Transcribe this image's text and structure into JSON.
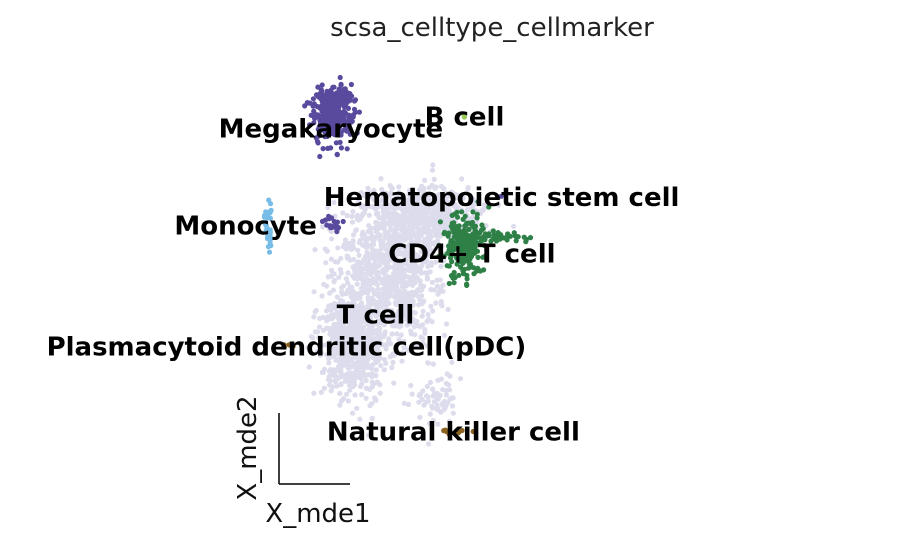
{
  "chart_data": {
    "type": "scatter",
    "title": "scsa_celltype_cellmarker",
    "xlabel": "X_mde1",
    "ylabel": "X_mde2",
    "grid": false,
    "legend": "on data",
    "xlim": [
      0,
      100
    ],
    "ylim": [
      0,
      100
    ],
    "series": [
      {
        "name": "T cell",
        "color": "#dcdcec",
        "label_pos": [
          26,
          42
        ],
        "clusters": [
          {
            "cx": 20,
            "cy": 35,
            "sx": 4.5,
            "sy": 7,
            "n": 700
          },
          {
            "cx": 28,
            "cy": 55,
            "sx": 7,
            "sy": 6,
            "n": 450
          },
          {
            "cx": 38,
            "cy": 66,
            "sx": 8,
            "sy": 4,
            "n": 600
          },
          {
            "cx": 33,
            "cy": 45,
            "sx": 5,
            "sy": 6,
            "n": 250
          },
          {
            "cx": 42,
            "cy": 22,
            "sx": 3.5,
            "sy": 4,
            "n": 70
          }
        ]
      },
      {
        "name": "Megakaryocyte",
        "color": "#5a4a9e",
        "label_pos": [
          14,
          88
        ],
        "clusters": [
          {
            "cx": 14,
            "cy": 91,
            "sx": 2.5,
            "sy": 3.2,
            "n": 320
          },
          {
            "cx": 16,
            "cy": 96,
            "sx": 2.5,
            "sy": 1.2,
            "n": 80
          },
          {
            "cx": 14,
            "cy": 64,
            "sx": 1.5,
            "sy": 1,
            "n": 20
          }
        ]
      },
      {
        "name": "CD4+ T cell",
        "color": "#2e8046",
        "label_pos": [
          52,
          57
        ],
        "clusters": [
          {
            "cx": 50,
            "cy": 59,
            "sx": 2.5,
            "sy": 4,
            "n": 230
          },
          {
            "cx": 59,
            "cy": 61,
            "sx": 4,
            "sy": 0.8,
            "n": 40
          }
        ]
      },
      {
        "name": "Monocyte",
        "color": "#78bde8",
        "label_pos": [
          -9,
          64
        ],
        "clusters": [
          {
            "cx": -3,
            "cy": 63,
            "sx": 0.4,
            "sy": 3.5,
            "n": 32
          }
        ]
      },
      {
        "name": "Natural killer cell",
        "color": "#8c6420",
        "label_pos": [
          47,
          13
        ],
        "clusters": [
          {
            "cx": 47,
            "cy": 13,
            "sx": 1.8,
            "sy": 0.3,
            "n": 12
          }
        ]
      },
      {
        "name": "Plasmacytoid dendritic cell(pDC)",
        "color": "#8c6420",
        "label_pos": [
          2,
          34
        ],
        "clusters": [
          {
            "cx": 2,
            "cy": 34,
            "sx": 0.8,
            "sy": 0.3,
            "n": 5
          }
        ]
      },
      {
        "name": "B cell",
        "color": "#98cc5a",
        "label_pos": [
          50,
          91
        ],
        "clusters": [
          {
            "cx": 50,
            "cy": 91,
            "sx": 0.2,
            "sy": 0.2,
            "n": 2
          }
        ]
      },
      {
        "name": "Hematopoietic stem cell",
        "color": "#5a4a9e",
        "label_pos": [
          60,
          71
        ],
        "clusters": [
          {
            "cx": 60,
            "cy": 71,
            "sx": 0.2,
            "sy": 0.2,
            "n": 1
          }
        ]
      }
    ]
  }
}
